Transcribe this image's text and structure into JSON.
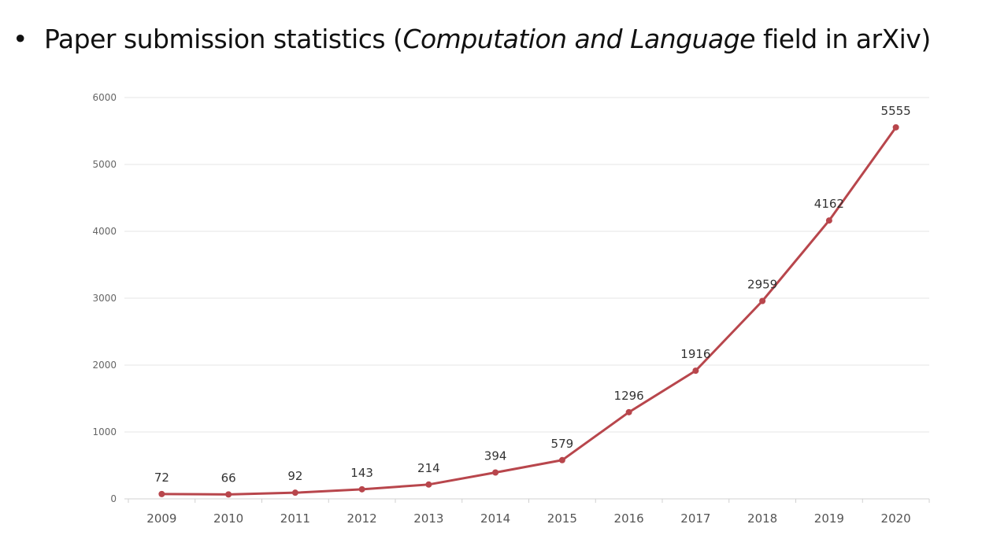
{
  "slide": {
    "bullet": "•",
    "title_pre": "Paper submission statistics (",
    "title_italic": "Computation and Language",
    "title_post": " field in arXiv)"
  },
  "chart_data": {
    "type": "line",
    "categories": [
      "2009",
      "2010",
      "2011",
      "2012",
      "2013",
      "2014",
      "2015",
      "2016",
      "2017",
      "2018",
      "2019",
      "2020"
    ],
    "series": [
      {
        "values": [
          72,
          66,
          92,
          143,
          214,
          394,
          579,
          1296,
          1916,
          2959,
          4162,
          5555
        ]
      }
    ],
    "data_labels": [
      "72",
      "66",
      "92",
      "143",
      "214",
      "394",
      "579",
      "1296",
      "1916",
      "2959",
      "4162",
      "5555"
    ],
    "yticks": [
      "0",
      "1000",
      "2000",
      "3000",
      "4000",
      "5000",
      "6000"
    ],
    "ylim": [
      0,
      6000
    ],
    "grid": true,
    "legend": "none",
    "line_color": "#b8464c"
  }
}
